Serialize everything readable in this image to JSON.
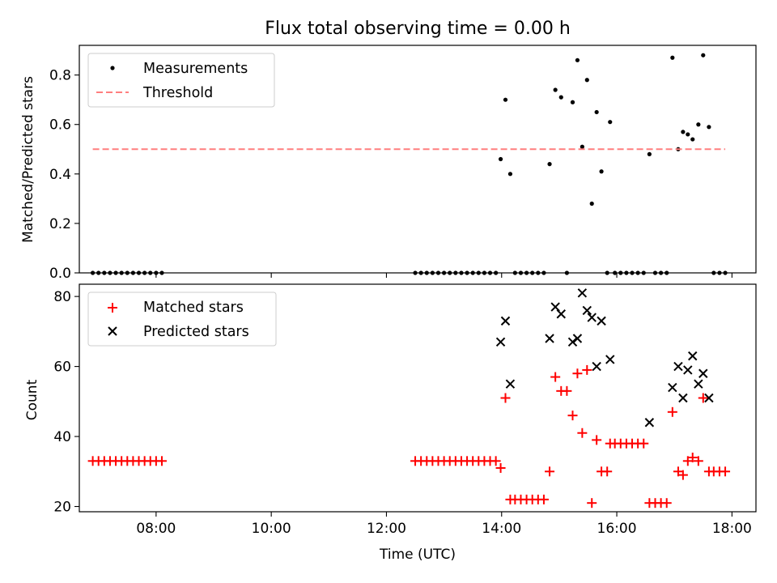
{
  "chart_data": [
    {
      "type": "scatter",
      "title": "Flux total observing time = 0.00 h",
      "xlabel": "",
      "ylabel": "Matched/Predicted stars",
      "xlim": [
        "06:40",
        "18:25"
      ],
      "ylim": [
        0,
        0.92
      ],
      "x_ticks": [
        "08:00",
        "10:00",
        "12:00",
        "14:00",
        "16:00",
        "18:00"
      ],
      "y_ticks": [
        "0.0",
        "0.2",
        "0.4",
        "0.6",
        "0.8"
      ],
      "legend_position": "upper left",
      "series": [
        {
          "name": "Measurements",
          "marker": "dot",
          "color": "#000000",
          "points": [
            [
              "06:54",
              0
            ],
            [
              "07:00",
              0
            ],
            [
              "07:06",
              0
            ],
            [
              "07:12",
              0
            ],
            [
              "07:18",
              0
            ],
            [
              "07:24",
              0
            ],
            [
              "07:30",
              0
            ],
            [
              "07:36",
              0
            ],
            [
              "07:42",
              0
            ],
            [
              "07:48",
              0
            ],
            [
              "07:54",
              0
            ],
            [
              "08:00",
              0
            ],
            [
              "08:06",
              0
            ],
            [
              "12:30",
              0
            ],
            [
              "12:36",
              0
            ],
            [
              "12:42",
              0
            ],
            [
              "12:48",
              0
            ],
            [
              "12:54",
              0
            ],
            [
              "13:00",
              0
            ],
            [
              "13:06",
              0
            ],
            [
              "13:12",
              0
            ],
            [
              "13:18",
              0
            ],
            [
              "13:24",
              0
            ],
            [
              "13:30",
              0
            ],
            [
              "13:36",
              0
            ],
            [
              "13:42",
              0
            ],
            [
              "13:48",
              0
            ],
            [
              "13:54",
              0
            ],
            [
              "13:59",
              0.46
            ],
            [
              "14:04",
              0.7
            ],
            [
              "14:09",
              0.4
            ],
            [
              "14:14",
              0
            ],
            [
              "14:20",
              0
            ],
            [
              "14:26",
              0
            ],
            [
              "14:32",
              0
            ],
            [
              "14:38",
              0
            ],
            [
              "14:44",
              0
            ],
            [
              "14:50",
              0.44
            ],
            [
              "14:56",
              0.74
            ],
            [
              "15:02",
              0.71
            ],
            [
              "15:08",
              0
            ],
            [
              "15:14",
              0.69
            ],
            [
              "15:19",
              0.86
            ],
            [
              "15:24",
              0.51
            ],
            [
              "15:29",
              0.78
            ],
            [
              "15:34",
              0.28
            ],
            [
              "15:39",
              0.65
            ],
            [
              "15:44",
              0.41
            ],
            [
              "15:50",
              0
            ],
            [
              "15:53",
              0.61
            ],
            [
              "15:58",
              0
            ],
            [
              "16:04",
              0
            ],
            [
              "16:10",
              0
            ],
            [
              "16:16",
              0
            ],
            [
              "16:22",
              0
            ],
            [
              "16:28",
              0
            ],
            [
              "16:34",
              0.48
            ],
            [
              "16:40",
              0
            ],
            [
              "16:46",
              0
            ],
            [
              "16:52",
              0
            ],
            [
              "16:58",
              0.87
            ],
            [
              "17:04",
              0.5
            ],
            [
              "17:09",
              0.57
            ],
            [
              "17:14",
              0.56
            ],
            [
              "17:19",
              0.54
            ],
            [
              "17:25",
              0.6
            ],
            [
              "17:30",
              0.88
            ],
            [
              "17:36",
              0.59
            ],
            [
              "17:41",
              0
            ],
            [
              "17:47",
              0
            ],
            [
              "17:53",
              0
            ]
          ]
        },
        {
          "name": "Threshold",
          "style": "dashed-line",
          "color": "#ff7f7f",
          "points": [
            [
              "06:54",
              0.5
            ],
            [
              "17:53",
              0.5
            ]
          ]
        }
      ]
    },
    {
      "type": "scatter",
      "title": "",
      "xlabel": "Time (UTC)",
      "ylabel": "Count",
      "xlim": [
        "06:40",
        "18:25"
      ],
      "ylim": [
        18.5,
        83.5
      ],
      "x_ticks": [
        "08:00",
        "10:00",
        "12:00",
        "14:00",
        "16:00",
        "18:00"
      ],
      "y_ticks": [
        "20",
        "40",
        "60",
        "80"
      ],
      "legend_position": "upper left",
      "series": [
        {
          "name": "Matched stars",
          "marker": "plus",
          "color": "#ff0000",
          "points": [
            [
              "06:54",
              33
            ],
            [
              "07:00",
              33
            ],
            [
              "07:06",
              33
            ],
            [
              "07:12",
              33
            ],
            [
              "07:18",
              33
            ],
            [
              "07:24",
              33
            ],
            [
              "07:30",
              33
            ],
            [
              "07:36",
              33
            ],
            [
              "07:42",
              33
            ],
            [
              "07:48",
              33
            ],
            [
              "07:54",
              33
            ],
            [
              "08:00",
              33
            ],
            [
              "08:06",
              33
            ],
            [
              "12:30",
              33
            ],
            [
              "12:36",
              33
            ],
            [
              "12:42",
              33
            ],
            [
              "12:48",
              33
            ],
            [
              "12:54",
              33
            ],
            [
              "13:00",
              33
            ],
            [
              "13:06",
              33
            ],
            [
              "13:12",
              33
            ],
            [
              "13:18",
              33
            ],
            [
              "13:24",
              33
            ],
            [
              "13:30",
              33
            ],
            [
              "13:36",
              33
            ],
            [
              "13:42",
              33
            ],
            [
              "13:48",
              33
            ],
            [
              "13:54",
              33
            ],
            [
              "13:59",
              31
            ],
            [
              "14:04",
              51
            ],
            [
              "14:09",
              22
            ],
            [
              "14:14",
              22
            ],
            [
              "14:20",
              22
            ],
            [
              "14:26",
              22
            ],
            [
              "14:32",
              22
            ],
            [
              "14:38",
              22
            ],
            [
              "14:44",
              22
            ],
            [
              "14:50",
              30
            ],
            [
              "14:56",
              57
            ],
            [
              "15:02",
              53
            ],
            [
              "15:08",
              53
            ],
            [
              "15:14",
              46
            ],
            [
              "15:19",
              58
            ],
            [
              "15:24",
              41
            ],
            [
              "15:29",
              59
            ],
            [
              "15:34",
              21
            ],
            [
              "15:39",
              39
            ],
            [
              "15:44",
              30
            ],
            [
              "15:50",
              30
            ],
            [
              "15:53",
              38
            ],
            [
              "15:58",
              38
            ],
            [
              "16:04",
              38
            ],
            [
              "16:10",
              38
            ],
            [
              "16:16",
              38
            ],
            [
              "16:22",
              38
            ],
            [
              "16:28",
              38
            ],
            [
              "16:34",
              21
            ],
            [
              "16:40",
              21
            ],
            [
              "16:46",
              21
            ],
            [
              "16:52",
              21
            ],
            [
              "16:58",
              47
            ],
            [
              "17:04",
              30
            ],
            [
              "17:09",
              29
            ],
            [
              "17:14",
              33
            ],
            [
              "17:19",
              34
            ],
            [
              "17:25",
              33
            ],
            [
              "17:30",
              51
            ],
            [
              "17:36",
              30
            ],
            [
              "17:41",
              30
            ],
            [
              "17:47",
              30
            ],
            [
              "17:53",
              30
            ]
          ]
        },
        {
          "name": "Predicted stars",
          "marker": "x",
          "color": "#000000",
          "points": [
            [
              "13:59",
              67
            ],
            [
              "14:04",
              73
            ],
            [
              "14:09",
              55
            ],
            [
              "14:50",
              68
            ],
            [
              "14:56",
              77
            ],
            [
              "15:02",
              75
            ],
            [
              "15:14",
              67
            ],
            [
              "15:19",
              68
            ],
            [
              "15:24",
              81
            ],
            [
              "15:29",
              76
            ],
            [
              "15:34",
              74
            ],
            [
              "15:39",
              60
            ],
            [
              "15:44",
              73
            ],
            [
              "15:53",
              62
            ],
            [
              "16:34",
              44
            ],
            [
              "16:58",
              54
            ],
            [
              "17:04",
              60
            ],
            [
              "17:09",
              51
            ],
            [
              "17:14",
              59
            ],
            [
              "17:19",
              63
            ],
            [
              "17:25",
              55
            ],
            [
              "17:30",
              58
            ],
            [
              "17:36",
              51
            ]
          ]
        }
      ]
    }
  ]
}
